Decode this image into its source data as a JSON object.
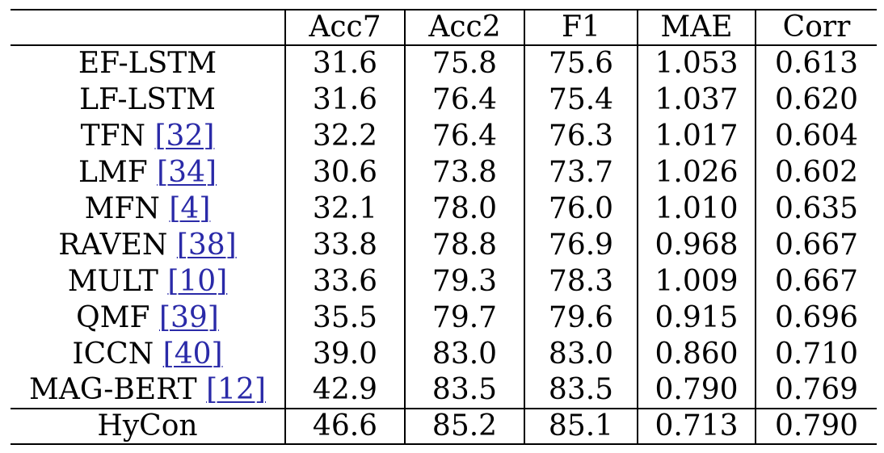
{
  "table": {
    "headers": [
      "",
      "Acc7",
      "Acc2",
      "F1",
      "MAE",
      "Corr"
    ],
    "rows": [
      {
        "method": "EF-LSTM",
        "cite": "",
        "values": [
          "31.6",
          "75.8",
          "75.6",
          "1.053",
          "0.613"
        ]
      },
      {
        "method": "LF-LSTM",
        "cite": "",
        "values": [
          "31.6",
          "76.4",
          "75.4",
          "1.037",
          "0.620"
        ]
      },
      {
        "method": "TFN",
        "cite": "[32]",
        "values": [
          "32.2",
          "76.4",
          "76.3",
          "1.017",
          "0.604"
        ]
      },
      {
        "method": "LMF",
        "cite": "[34]",
        "values": [
          "30.6",
          "73.8",
          "73.7",
          "1.026",
          "0.602"
        ]
      },
      {
        "method": "MFN",
        "cite": "[4]",
        "values": [
          "32.1",
          "78.0",
          "76.0",
          "1.010",
          "0.635"
        ]
      },
      {
        "method": "RAVEN",
        "cite": "[38]",
        "values": [
          "33.8",
          "78.8",
          "76.9",
          "0.968",
          "0.667"
        ]
      },
      {
        "method": "MULT",
        "cite": "[10]",
        "values": [
          "33.6",
          "79.3",
          "78.3",
          "1.009",
          "0.667"
        ]
      },
      {
        "method": "QMF",
        "cite": "[39]",
        "values": [
          "35.5",
          "79.7",
          "79.6",
          "0.915",
          "0.696"
        ]
      },
      {
        "method": "ICCN",
        "cite": "[40]",
        "values": [
          "39.0",
          "83.0",
          "83.0",
          "0.860",
          "0.710"
        ]
      },
      {
        "method": "MAG-BERT",
        "cite": "[12]",
        "values": [
          "42.9",
          "83.5",
          "83.5",
          "0.790",
          "0.769"
        ]
      }
    ],
    "final_row": {
      "method": "HyCon",
      "values": [
        "46.6",
        "85.2",
        "85.1",
        "0.713",
        "0.790"
      ]
    }
  },
  "colors": {
    "citation_link": "#2a2aa8",
    "text": "#000000",
    "rule": "#000000"
  }
}
